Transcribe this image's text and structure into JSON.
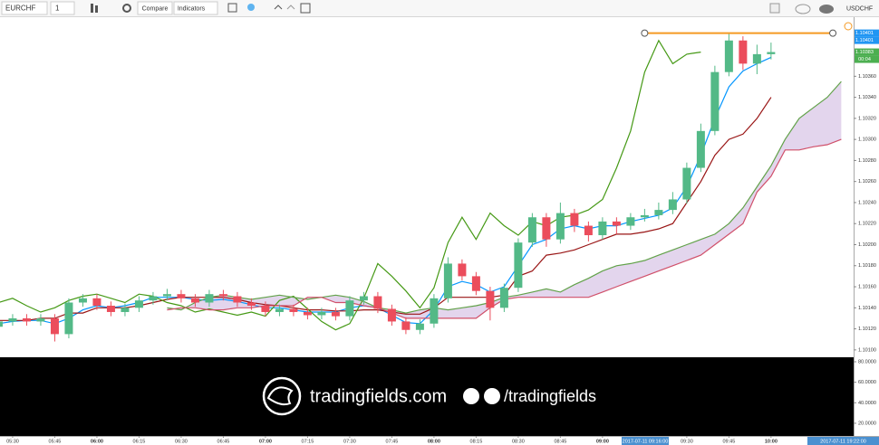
{
  "toolbar": {
    "symbol": "EURCHF",
    "interval": "1",
    "compare": "Compare",
    "indicators": "Indicators",
    "symbol2": "USDCHF"
  },
  "watermark": {
    "site": "tradingfields.com",
    "handle": "/tradingfields"
  },
  "chart_data": {
    "type": "candlestick",
    "x": [
      325,
      330,
      335,
      340,
      345,
      350,
      355,
      360,
      365,
      370,
      375,
      380,
      385,
      390,
      395,
      400,
      405,
      410,
      415,
      420,
      425,
      430,
      435,
      440,
      445,
      450,
      455,
      460,
      465,
      470,
      475,
      480,
      485,
      490,
      495,
      500,
      505,
      510,
      515,
      520,
      525,
      530,
      535,
      540,
      545,
      550,
      555,
      560,
      565,
      570,
      575,
      580,
      585,
      590,
      595,
      600,
      605,
      610,
      615,
      620,
      625
    ],
    "xlim": [
      325.5,
      629.4
    ],
    "xticks": [
      {
        "value": 330,
        "label": "05:30"
      },
      {
        "value": 345,
        "label": "05:45"
      },
      {
        "value": 360,
        "label": "06:00"
      },
      {
        "value": 375,
        "label": "06:15"
      },
      {
        "value": 390,
        "label": "06:30"
      },
      {
        "value": 405,
        "label": "06:45"
      },
      {
        "value": 420,
        "label": "07:00"
      },
      {
        "value": 435,
        "label": "07:15"
      },
      {
        "value": 450,
        "label": "07:30"
      },
      {
        "value": 465,
        "label": "07:45"
      },
      {
        "value": 480,
        "label": "08:00"
      },
      {
        "value": 495,
        "label": "08:15"
      },
      {
        "value": 510,
        "label": "08:30"
      },
      {
        "value": 525,
        "label": "08:45"
      },
      {
        "value": 540,
        "label": "09:00"
      },
      {
        "value": 570,
        "label": "09:30"
      },
      {
        "value": 585,
        "label": "09:45"
      },
      {
        "value": 600,
        "label": "10:00"
      }
    ],
    "ylim": [
      1.10093,
      1.10417
    ],
    "yticks": [
      {
        "value": 1.101,
        "label": "1.10100"
      },
      {
        "value": 1.1012,
        "label": "1.10120"
      },
      {
        "value": 1.1014,
        "label": "1.10140"
      },
      {
        "value": 1.1016,
        "label": "1.10160"
      },
      {
        "value": 1.1018,
        "label": "1.10180"
      },
      {
        "value": 1.102,
        "label": "1.10200"
      },
      {
        "value": 1.1022,
        "label": "1.10220"
      },
      {
        "value": 1.1024,
        "label": "1.10240"
      },
      {
        "value": 1.1026,
        "label": "1.10260"
      },
      {
        "value": 1.1028,
        "label": "1.10280"
      },
      {
        "value": 1.103,
        "label": "1.10300"
      },
      {
        "value": 1.1032,
        "label": "1.10320"
      },
      {
        "value": 1.1034,
        "label": "1.10340"
      },
      {
        "value": 1.1036,
        "label": "1.10360"
      }
    ],
    "candles": {
      "up_color": "#53b987",
      "down_color": "#eb4d5c",
      "open": [
        1.10122,
        1.10127,
        1.1013,
        1.10127,
        1.1013,
        1.10115,
        1.10145,
        1.10149,
        1.10142,
        1.10136,
        1.1014,
        1.10147,
        1.10151,
        1.10153,
        1.10149,
        1.10145,
        1.10153,
        1.10151,
        1.10145,
        1.10142,
        1.10136,
        1.10139,
        1.10136,
        1.10133,
        1.10136,
        1.10132,
        1.10147,
        1.10151,
        1.10139,
        1.10127,
        1.10119,
        1.10125,
        1.10149,
        1.10182,
        1.1017,
        1.10156,
        1.1014,
        1.10159,
        1.10202,
        1.10226,
        1.10205,
        1.1023,
        1.10218,
        1.10209,
        1.10222,
        1.10218,
        1.10226,
        1.10228,
        1.10233,
        1.10243,
        1.10273,
        1.10308,
        1.10364,
        1.10394,
        1.10372,
        1.10381,
        null,
        null,
        null,
        null,
        null
      ],
      "high": [
        1.10131,
        1.10134,
        1.10134,
        1.10134,
        1.10134,
        1.10149,
        1.10153,
        1.10153,
        1.10146,
        1.10144,
        1.10151,
        1.10155,
        1.10158,
        1.10157,
        1.10153,
        1.10157,
        1.10157,
        1.10155,
        1.10149,
        1.10146,
        1.10143,
        1.10143,
        1.1014,
        1.1014,
        1.1014,
        1.10151,
        1.10155,
        1.10155,
        1.10143,
        1.10131,
        1.10129,
        1.10153,
        1.10188,
        1.10186,
        1.10174,
        1.1016,
        1.10163,
        1.10206,
        1.1023,
        1.1023,
        1.1024,
        1.10234,
        1.10222,
        1.10226,
        1.10226,
        1.1023,
        1.10234,
        1.1024,
        1.1025,
        1.10278,
        1.10315,
        1.1037,
        1.10401,
        1.10398,
        1.1039,
        1.10392,
        null,
        null,
        null,
        null,
        null
      ],
      "low": [
        1.10118,
        1.10123,
        1.10123,
        1.10123,
        1.10108,
        1.10111,
        1.10141,
        1.10138,
        1.10132,
        1.10132,
        1.10136,
        1.10143,
        1.10147,
        1.10145,
        1.10141,
        1.10141,
        1.10147,
        1.10141,
        1.10138,
        1.10132,
        1.10132,
        1.10132,
        1.10129,
        1.10129,
        1.10128,
        1.10128,
        1.10143,
        1.10135,
        1.10123,
        1.10115,
        1.10115,
        1.10121,
        1.10145,
        1.10166,
        1.10152,
        1.10128,
        1.10136,
        1.10155,
        1.10198,
        1.10198,
        1.10201,
        1.10212,
        1.10203,
        1.10205,
        1.1021,
        1.10214,
        1.10222,
        1.10224,
        1.10229,
        1.10239,
        1.10269,
        1.10304,
        1.1036,
        1.10366,
        1.10362,
        1.10376,
        null,
        null,
        null,
        null,
        null
      ],
      "close": [
        1.10127,
        1.1013,
        1.10127,
        1.1013,
        1.10115,
        1.10145,
        1.10149,
        1.10142,
        1.10136,
        1.1014,
        1.10147,
        1.10151,
        1.10153,
        1.10149,
        1.10145,
        1.10153,
        1.10151,
        1.10145,
        1.10142,
        1.10136,
        1.10139,
        1.10136,
        1.10133,
        1.10136,
        1.10132,
        1.10147,
        1.10151,
        1.10139,
        1.10127,
        1.10119,
        1.10125,
        1.10149,
        1.10182,
        1.1017,
        1.10156,
        1.1014,
        1.10159,
        1.10202,
        1.10226,
        1.10205,
        1.1023,
        1.10218,
        1.10209,
        1.10222,
        1.10218,
        1.10226,
        1.10228,
        1.10233,
        1.10243,
        1.10273,
        1.10308,
        1.10364,
        1.10394,
        1.10372,
        1.10381,
        1.10383,
        null,
        null,
        null,
        null,
        null
      ]
    },
    "cloud_color": "#dccbe8",
    "series": [
      {
        "color": "#0496ff",
        "values": [
          1.10125,
          1.10127,
          1.10128,
          1.10128,
          1.10125,
          1.1013,
          1.10138,
          1.10142,
          1.1014,
          1.10142,
          1.10145,
          1.1015,
          1.1015,
          1.1015,
          1.10148,
          1.10147,
          1.10148,
          1.10146,
          1.10143,
          1.1014,
          1.1014,
          1.10138,
          1.10136,
          1.10136,
          1.10136,
          1.1014,
          1.10142,
          1.1014,
          1.10133,
          1.10126,
          1.10125,
          1.10138,
          1.1016,
          1.10165,
          1.10162,
          1.10155,
          1.1016,
          1.1018,
          1.102,
          1.10205,
          1.10215,
          1.10218,
          1.10215,
          1.10218,
          1.10218,
          1.10222,
          1.10225,
          1.10228,
          1.10235,
          1.10255,
          1.10285,
          1.1032,
          1.1035,
          1.10365,
          1.10372,
          1.10378,
          null,
          null,
          null,
          null,
          null
        ]
      },
      {
        "color": "#991515",
        "values": [
          1.10128,
          1.10128,
          1.10128,
          1.1013,
          1.1013,
          1.10135,
          1.10135,
          1.1014,
          1.1014,
          1.1014,
          1.10142,
          1.10145,
          1.10148,
          1.1015,
          1.1015,
          1.1015,
          1.1015,
          1.10148,
          1.10145,
          1.10143,
          1.10142,
          1.1014,
          1.10138,
          1.10138,
          1.10137,
          1.10137,
          1.10138,
          1.10138,
          1.10136,
          1.10134,
          1.10134,
          1.1014,
          1.1015,
          1.1015,
          1.1015,
          1.1015,
          1.10152,
          1.1017,
          1.10175,
          1.1019,
          1.10192,
          1.10195,
          1.102,
          1.10205,
          1.1021,
          1.1021,
          1.10212,
          1.10215,
          1.1022,
          1.1024,
          1.1026,
          1.10285,
          1.103,
          1.10305,
          1.1032,
          1.1034,
          null,
          null,
          null,
          null,
          null
        ]
      },
      {
        "color": "#459915",
        "values": [
          1.10145,
          1.10149,
          1.10142,
          1.10136,
          1.1014,
          1.10147,
          1.10151,
          1.10153,
          1.10149,
          1.10145,
          1.10153,
          1.10151,
          1.10145,
          1.10142,
          1.10136,
          1.10139,
          1.10136,
          1.10133,
          1.10136,
          1.10132,
          1.10147,
          1.10151,
          1.10139,
          1.10127,
          1.10119,
          1.10125,
          1.10149,
          1.10182,
          1.1017,
          1.10156,
          1.1014,
          1.10159,
          1.10202,
          1.10226,
          1.10205,
          1.1023,
          1.10218,
          1.10209,
          1.10222,
          1.10218,
          1.10226,
          1.10228,
          1.10233,
          1.10243,
          1.10273,
          1.10308,
          1.10364,
          1.10394,
          1.10372,
          1.10381,
          1.10383,
          null,
          null,
          null,
          null,
          null,
          null,
          null,
          null,
          null,
          null
        ]
      },
      {
        "color": "#62a24a",
        "values": [
          null,
          null,
          null,
          null,
          null,
          null,
          null,
          null,
          null,
          null,
          null,
          null,
          1.1014,
          1.10138,
          1.10145,
          1.1015,
          1.10152,
          1.1015,
          1.10148,
          1.1015,
          1.10152,
          1.1015,
          1.10148,
          1.1015,
          1.10152,
          1.1015,
          1.10146,
          1.1014,
          1.10138,
          1.10135,
          1.10138,
          1.1014,
          1.10138,
          1.1014,
          1.10142,
          1.10145,
          1.1015,
          1.10152,
          1.10155,
          1.10158,
          1.10155,
          1.10162,
          1.10168,
          1.10175,
          1.1018,
          1.10182,
          1.10185,
          1.1019,
          1.10195,
          1.102,
          1.10205,
          1.1021,
          1.1022,
          1.10235,
          1.10255,
          1.10275,
          1.103,
          1.1032,
          1.1033,
          1.1034,
          1.10355
        ]
      },
      {
        "color": "#d0506a",
        "values": [
          null,
          null,
          null,
          null,
          null,
          null,
          null,
          null,
          null,
          null,
          null,
          null,
          1.10138,
          1.1014,
          1.1014,
          1.10138,
          1.10138,
          1.1014,
          1.1014,
          1.10142,
          1.10142,
          1.10142,
          1.1015,
          1.1015,
          1.10145,
          1.10145,
          1.10142,
          1.1014,
          1.10135,
          1.1013,
          1.1013,
          1.1013,
          1.1013,
          1.1013,
          1.1013,
          1.1014,
          1.10148,
          1.1015,
          1.1015,
          1.1015,
          1.1015,
          1.1015,
          1.1015,
          1.10155,
          1.1016,
          1.10165,
          1.1017,
          1.10175,
          1.1018,
          1.10185,
          1.1019,
          1.102,
          1.1021,
          1.1022,
          1.1025,
          1.10265,
          1.1029,
          1.1029,
          1.10293,
          1.10295,
          1.103
        ]
      }
    ],
    "hline": {
      "value": 1.10401,
      "color": "#f59a23",
      "x": [
        555,
        622
      ]
    },
    "price_labels": [
      {
        "value": 1.10401,
        "label": "1.10401",
        "color": "#2196f3"
      },
      {
        "value": 1.10401,
        "label": "1.10401",
        "color": "#2196f3"
      },
      {
        "value": 1.10383,
        "label": "1.10383",
        "color": "#4caf50"
      },
      {
        "label": "00:04",
        "color": "#4caf50"
      }
    ],
    "time_labels": [
      "2017-07-11 09:16:00",
      "2017-07-11 19:22:00"
    ],
    "indicator_panel": {
      "ylim": [
        7.6,
        84.4
      ],
      "yticks": [
        {
          "value": 80,
          "label": "80.0000"
        },
        {
          "value": 60,
          "label": "60.0000"
        },
        {
          "value": 40,
          "label": "40.0000"
        },
        {
          "value": 20,
          "label": "20.0000"
        }
      ]
    }
  }
}
